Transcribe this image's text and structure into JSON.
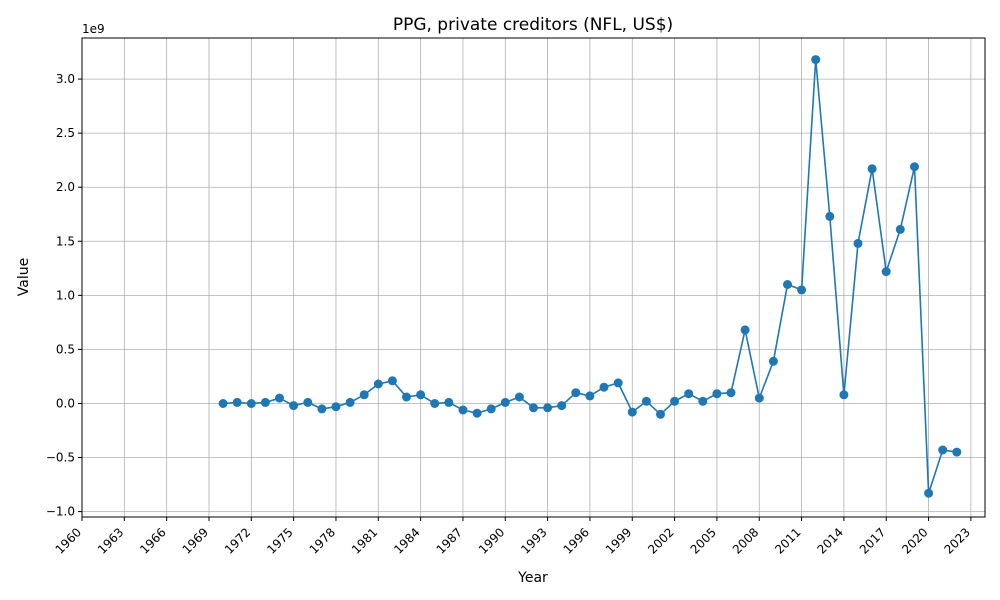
{
  "chart_data": {
    "type": "line",
    "title": "PPG, private creditors (NFL, US$)",
    "xlabel": "Year",
    "ylabel": "Value",
    "y_offset_label": "1e9",
    "grid": true,
    "xlim": [
      1960,
      2024
    ],
    "ylim": [
      -1.05,
      3.38
    ],
    "y_scale_note": "values in billions (1e9)",
    "x_ticks": [
      1960,
      1963,
      1966,
      1969,
      1972,
      1975,
      1978,
      1981,
      1984,
      1987,
      1990,
      1993,
      1996,
      1999,
      2002,
      2005,
      2008,
      2011,
      2014,
      2017,
      2020,
      2023
    ],
    "y_ticks": [
      -1.0,
      -0.5,
      0.0,
      0.5,
      1.0,
      1.5,
      2.0,
      2.5,
      3.0
    ],
    "y_tick_labels": [
      "−1.0",
      "−0.5",
      "0.0",
      "0.5",
      "1.0",
      "1.5",
      "2.0",
      "2.5",
      "3.0"
    ],
    "color": "#1f77b4",
    "series": [
      {
        "x": [
          1970,
          1971,
          1972,
          1973,
          1974,
          1975,
          1976,
          1977,
          1978,
          1979,
          1980,
          1981,
          1982,
          1983,
          1984,
          1985,
          1986,
          1987,
          1988,
          1989,
          1990,
          1991,
          1992,
          1993,
          1994,
          1995,
          1996,
          1997,
          1998,
          1999,
          2000,
          2001,
          2002,
          2003,
          2004,
          2005,
          2006,
          2007,
          2008,
          2009,
          2010,
          2011,
          2012,
          2013,
          2014,
          2015,
          2016,
          2017,
          2018,
          2019,
          2020,
          2021,
          2022
        ],
        "values": [
          0.0,
          0.01,
          0.0,
          0.01,
          0.05,
          -0.02,
          0.01,
          -0.05,
          -0.03,
          0.01,
          0.08,
          0.18,
          0.21,
          0.06,
          0.08,
          0.0,
          0.01,
          -0.06,
          -0.09,
          -0.05,
          0.01,
          0.06,
          -0.04,
          -0.04,
          -0.02,
          0.1,
          0.07,
          0.15,
          0.19,
          -0.08,
          0.02,
          -0.1,
          0.02,
          0.09,
          0.02,
          0.09,
          0.1,
          0.68,
          0.05,
          0.39,
          1.1,
          1.05,
          3.18,
          1.73,
          0.08,
          1.48,
          2.17,
          1.22,
          1.61,
          2.19,
          -0.83,
          -0.43,
          -0.45
        ]
      }
    ]
  }
}
